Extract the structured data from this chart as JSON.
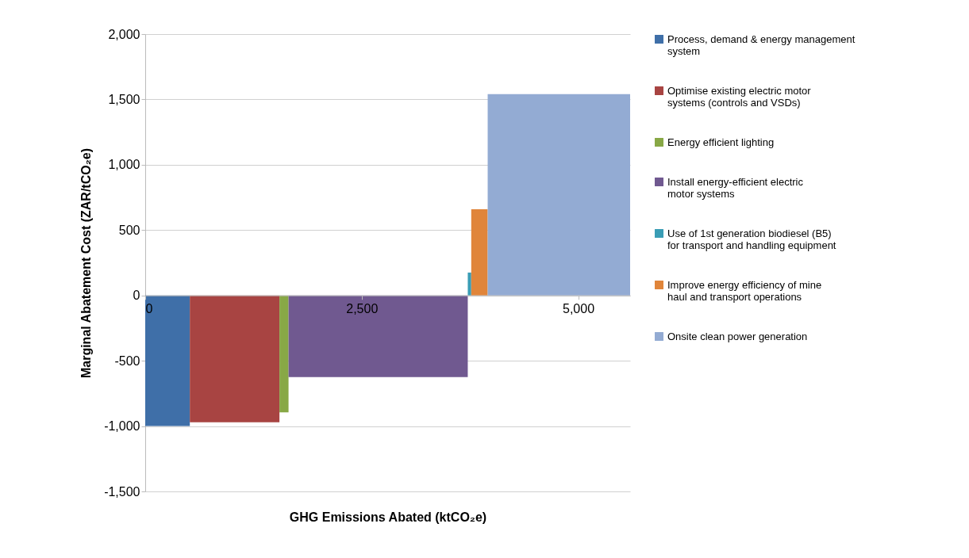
{
  "chart_data": {
    "type": "area",
    "xlabel": "GHG  Emissions Abated (ktCO₂e)",
    "ylabel": "Marginal Abatement Cost (ZAR/tCO₂e)",
    "xlim": [
      0,
      5600
    ],
    "xticks": [
      0,
      {
        "value": 2500,
        "label": "2,500"
      },
      {
        "value": 5000,
        "label": "5,000"
      }
    ],
    "ylim": [
      -1500,
      2000
    ],
    "yticks": [
      {
        "value": -1500,
        "label": "-1,500"
      },
      {
        "value": -1000,
        "label": "-1,000"
      },
      {
        "value": -500,
        "label": "-500"
      },
      0,
      500,
      {
        "value": 1000,
        "label": "1,000"
      },
      {
        "value": 1500,
        "label": "1,500"
      },
      {
        "value": 2000,
        "label": "2,000"
      }
    ],
    "grid": "y",
    "legend": "right",
    "series": [
      {
        "name": "Process, demand & energy management system",
        "color": "#3f6fa8",
        "x": [
          0,
          515
        ],
        "values": [
          -1000,
          -1000
        ]
      },
      {
        "name": "Optimise existing electric motor systems (controls and VSDs)",
        "color": "#a84442",
        "x": [
          515,
          1550
        ],
        "values": [
          -970,
          -970
        ]
      },
      {
        "name": "Energy efficient lighting",
        "color": "#88a846",
        "x": [
          1550,
          1655
        ],
        "values": [
          -895,
          -895
        ]
      },
      {
        "name": "Install energy-efficient electric motor systems",
        "color": "#705990",
        "x": [
          1655,
          3725
        ],
        "values": [
          -625,
          -625
        ]
      },
      {
        "name": "Use of 1st generation biodiesel (B5) for transport and handling equipment",
        "color": "#3a9db5",
        "x": [
          3725,
          3765
        ],
        "values": [
          175,
          175
        ]
      },
      {
        "name": "Improve energy efficiency of mine haul and transport operations",
        "color": "#e0853a",
        "x": [
          3765,
          3955
        ],
        "values": [
          660,
          660
        ]
      },
      {
        "name": "Onsite clean power generation",
        "color": "#93abd3",
        "x": [
          3955,
          5600
        ],
        "values": [
          1540,
          1540
        ]
      }
    ]
  }
}
